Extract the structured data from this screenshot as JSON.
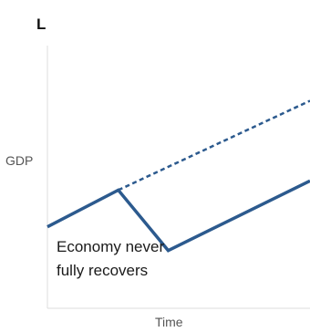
{
  "chart_data": {
    "type": "line",
    "panel_label": "L",
    "xlabel": "Time",
    "ylabel": "GDP",
    "annotation": "Economy never\nfully recovers",
    "xlim": [
      0,
      10
    ],
    "ylim": [
      0,
      10
    ],
    "grid": false,
    "legend": "none",
    "series": [
      {
        "style": "solid",
        "color": "#2c5a8e",
        "x": [
          0,
          2.7,
          4.6,
          10
        ],
        "y": [
          3.1,
          4.5,
          2.2,
          4.85
        ]
      },
      {
        "style": "dashed",
        "color": "#2c5a8e",
        "x": [
          2.7,
          10
        ],
        "y": [
          4.5,
          7.9
        ]
      }
    ],
    "axis_color": "#dcdcdc"
  }
}
